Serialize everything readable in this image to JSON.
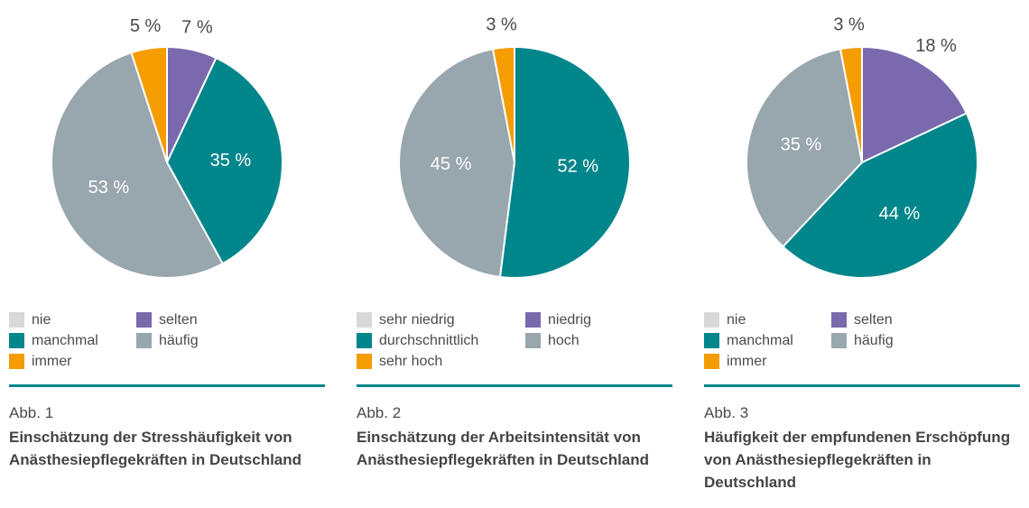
{
  "colors": {
    "teal": "#00868b",
    "gray": "#98a6ad",
    "purple": "#7a69ad",
    "orange": "#f59c00",
    "light_gray": "#d8d8d8",
    "divider": "#00868b",
    "text_dark": "#4b4b4b",
    "label_outside": "#4a4a4a",
    "label_inside": "#ffffff"
  },
  "chart_data": [
    {
      "type": "pie",
      "figure_label": "Abb. 1",
      "title": "Einschätzung der Stresshäufigkeit von Anästhesiepflegekräften in Deutschland",
      "categories": [
        "nie",
        "selten",
        "manchmal",
        "häufig",
        "immer"
      ],
      "values": [
        0,
        7,
        35,
        53,
        5
      ],
      "color_keys": [
        "light_gray",
        "purple",
        "teal",
        "gray",
        "orange"
      ],
      "value_label_format": "{value} %",
      "start_angle": "top",
      "direction": "clockwise",
      "legend_position": "below, two columns, row-wise"
    },
    {
      "type": "pie",
      "figure_label": "Abb. 2",
      "title": "Einschätzung der Arbeitsintensität von Anästhesiepflegekräften in Deutschland",
      "categories": [
        "sehr niedrig",
        "niedrig",
        "durchschnittlich",
        "hoch",
        "sehr hoch"
      ],
      "values": [
        0,
        0,
        52,
        45,
        3
      ],
      "color_keys": [
        "light_gray",
        "purple",
        "teal",
        "gray",
        "orange"
      ],
      "value_label_format": "{value} %",
      "start_angle": "top",
      "direction": "clockwise",
      "legend_position": "below, two columns, row-wise"
    },
    {
      "type": "pie",
      "figure_label": "Abb. 3",
      "title": "Häufigkeit der empfundenen Erschöpfung von Anästhesiepflegekräften in Deutschland",
      "categories": [
        "nie",
        "selten",
        "manchmal",
        "häufig",
        "immer"
      ],
      "values": [
        0,
        18,
        44,
        35,
        3
      ],
      "color_keys": [
        "light_gray",
        "purple",
        "teal",
        "gray",
        "orange"
      ],
      "value_label_format": "{value} %",
      "start_angle": "top",
      "direction": "clockwise",
      "legend_position": "below, two columns, row-wise"
    }
  ]
}
